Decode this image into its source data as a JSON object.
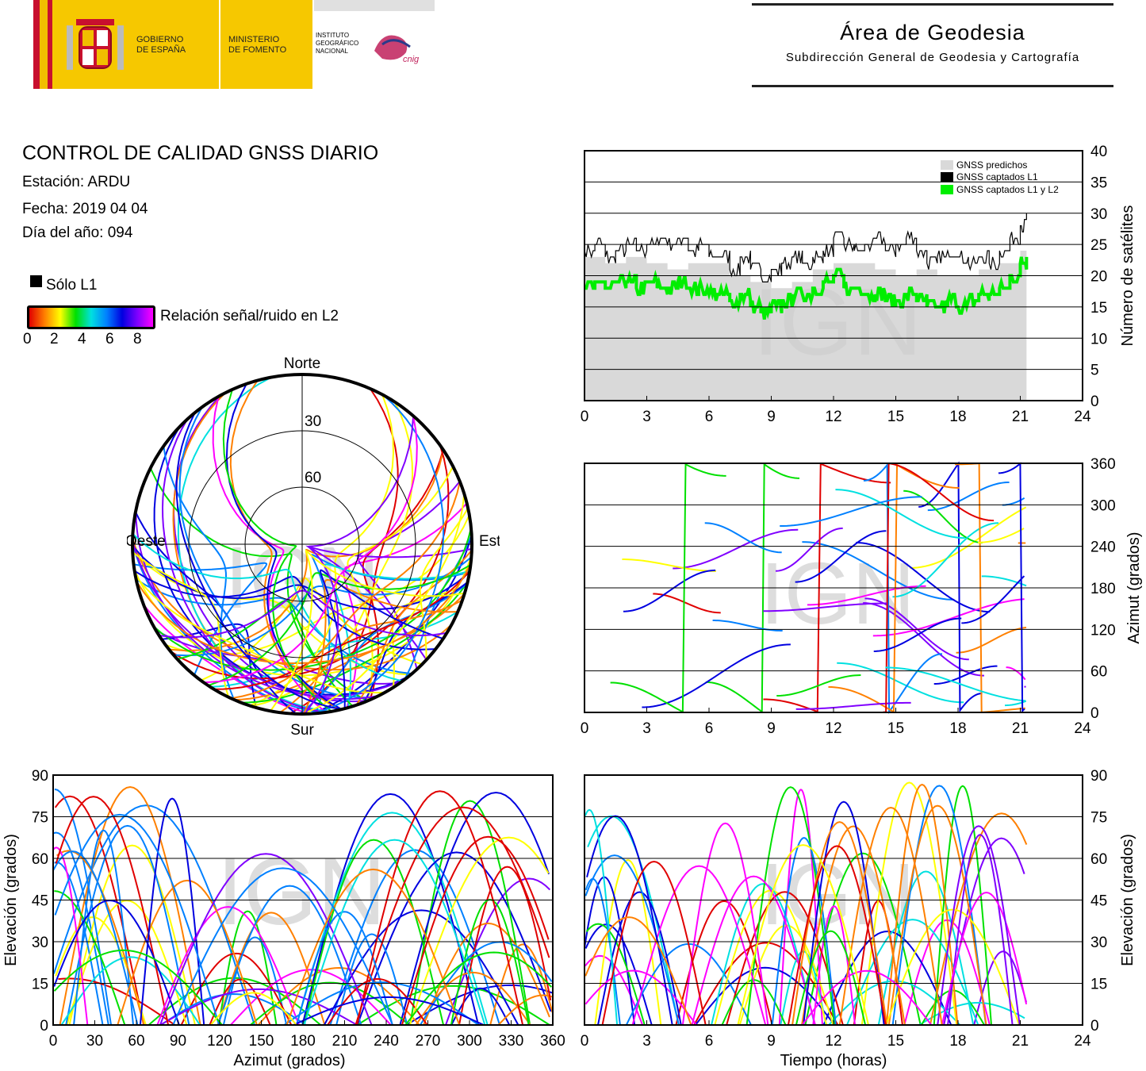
{
  "header": {
    "gov_line1": "GOBIERNO",
    "gov_line2": "DE ESPAÑA",
    "min_line1": "MINISTERIO",
    "min_line2": "DE FOMENTO",
    "inst_line1": "INSTITUTO",
    "inst_line2": "GEOGRÁFICO",
    "inst_line3": "NACIONAL",
    "cnig": "cnig",
    "area": "Área de Geodesia",
    "subarea": "Subdirección General de Geodesia y Cartografía"
  },
  "info": {
    "title": "CONTROL DE CALIDAD GNSS DIARIO",
    "station": "Estación: ARDU",
    "date": "Fecha: 2019 04 04",
    "doy": "Día del año: 094"
  },
  "legend": {
    "l1_only": "Sólo L1",
    "snr_label": "Relación señal/ruido en L2",
    "snr_ticks": [
      "0",
      "2",
      "4",
      "6",
      "8"
    ]
  },
  "watermark": "IGN",
  "colors": {
    "predicted": "#d9d9d9",
    "l1": "#000000",
    "l1l2": "#00ee00",
    "snr_scale": [
      "#e00000",
      "#ff8000",
      "#ffff00",
      "#00e000",
      "#00e0e0",
      "#0080ff",
      "#0000e0",
      "#8000ff",
      "#ff00ff"
    ]
  },
  "chart_data": [
    {
      "type": "area",
      "id": "satellites",
      "ylabel": "Número de satélites",
      "xlim": [
        0,
        24
      ],
      "ylim": [
        0,
        40
      ],
      "xticks": [
        "0",
        "3",
        "6",
        "9",
        "12",
        "15",
        "18",
        "21",
        "24"
      ],
      "yticks": [
        "0",
        "5",
        "10",
        "15",
        "20",
        "25",
        "30",
        "35",
        "40"
      ],
      "grid": true,
      "legend_position": "top-right",
      "series": [
        {
          "name": "GNSS predichos",
          "x": [
            0,
            1,
            2,
            3,
            4,
            5,
            6,
            7,
            8,
            9,
            10,
            11,
            12,
            13,
            14,
            15,
            16,
            17,
            18,
            19,
            20,
            21,
            21.3
          ],
          "values": [
            23,
            22,
            23,
            22,
            21,
            22,
            22,
            20,
            19,
            18,
            19,
            21,
            22,
            22,
            21,
            20,
            21,
            20,
            20,
            21,
            22,
            24,
            24
          ]
        },
        {
          "name": "GNSS captados L1",
          "x": [
            0,
            0.5,
            1,
            1.5,
            2,
            2.5,
            3,
            3.5,
            4,
            4.5,
            5,
            5.5,
            6,
            6.5,
            7,
            7.5,
            8,
            8.5,
            9,
            9.5,
            10,
            10.5,
            11,
            11.5,
            12,
            12.5,
            13,
            13.5,
            14,
            14.5,
            15,
            15.5,
            16,
            16.5,
            17,
            17.5,
            18,
            18.5,
            19,
            19.5,
            20,
            20.5,
            21,
            21.3
          ],
          "values": [
            24,
            25,
            23,
            24,
            25,
            24,
            25,
            26,
            25,
            26,
            24,
            25,
            23,
            23,
            21,
            23,
            21,
            20,
            21,
            22,
            23,
            22,
            23,
            24,
            26,
            25,
            24,
            25,
            26,
            24,
            25,
            26,
            24,
            22,
            23,
            24,
            23,
            22,
            23,
            22,
            24,
            26,
            28,
            30
          ]
        },
        {
          "name": "GNSS captados L1 y L2",
          "x": [
            0,
            0.5,
            1,
            1.5,
            2,
            2.5,
            3,
            3.5,
            4,
            4.5,
            5,
            5.5,
            6,
            6.5,
            7,
            7.5,
            8,
            8.5,
            9,
            9.5,
            10,
            10.5,
            11,
            11.5,
            12,
            12.5,
            13,
            13.5,
            14,
            14.5,
            15,
            15.5,
            16,
            16.5,
            17,
            17.5,
            18,
            18.5,
            19,
            19.5,
            20,
            20.5,
            21,
            21.3
          ],
          "values": [
            18,
            19,
            18,
            19,
            19,
            18,
            19,
            18,
            18,
            19,
            18,
            18,
            17,
            17,
            16,
            17,
            15,
            14,
            15,
            16,
            17,
            17,
            18,
            19,
            20,
            18,
            18,
            17,
            17,
            16,
            16,
            17,
            16,
            15,
            15,
            16,
            15,
            16,
            17,
            17,
            18,
            20,
            22,
            23
          ]
        }
      ]
    },
    {
      "type": "scatter",
      "id": "azimuth",
      "ylabel": "Azimut (grados)",
      "xlim": [
        0,
        24
      ],
      "ylim": [
        0,
        360
      ],
      "xticks": [
        "0",
        "3",
        "6",
        "9",
        "12",
        "15",
        "18",
        "21",
        "24"
      ],
      "yticks": [
        "0",
        "60",
        "120",
        "180",
        "240",
        "300",
        "360"
      ],
      "grid": true
    },
    {
      "type": "scatter",
      "id": "elevation_azimuth",
      "xlabel": "Azimut (grados)",
      "ylabel": "Elevación (grados)",
      "xlim": [
        0,
        360
      ],
      "ylim": [
        0,
        90
      ],
      "xticks": [
        "0",
        "30",
        "60",
        "90",
        "120",
        "150",
        "180",
        "210",
        "240",
        "270",
        "300",
        "330",
        "360"
      ],
      "yticks": [
        "0",
        "15",
        "30",
        "45",
        "60",
        "75",
        "90"
      ],
      "grid": true
    },
    {
      "type": "scatter",
      "id": "elevation_time",
      "xlabel": "Tiempo (horas)",
      "ylabel": "Elevación (grados)",
      "xlim": [
        0,
        24
      ],
      "ylim": [
        0,
        90
      ],
      "xticks": [
        "0",
        "3",
        "6",
        "9",
        "12",
        "15",
        "18",
        "21",
        "24"
      ],
      "yticks": [
        "0",
        "15",
        "30",
        "45",
        "60",
        "75",
        "90"
      ],
      "grid": true
    },
    {
      "type": "scatter",
      "id": "skyplot",
      "labels": {
        "north": "Norte",
        "south": "Sur",
        "east": "Este",
        "west": "Oeste"
      },
      "rings": [
        "30",
        "60"
      ]
    }
  ]
}
